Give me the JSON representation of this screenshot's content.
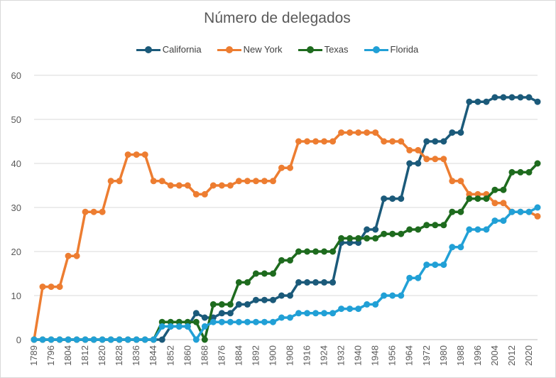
{
  "chart_data": {
    "type": "line",
    "title": "Número de delegados",
    "xlabel": "",
    "ylabel": "",
    "ylim": [
      0,
      60
    ],
    "yticks": [
      0,
      10,
      20,
      30,
      40,
      50,
      60
    ],
    "grid": true,
    "legend_position": "top",
    "x": [
      1789,
      1792,
      1796,
      1800,
      1804,
      1808,
      1812,
      1816,
      1820,
      1824,
      1828,
      1832,
      1836,
      1840,
      1844,
      1848,
      1852,
      1856,
      1860,
      1864,
      1868,
      1872,
      1876,
      1880,
      1884,
      1888,
      1892,
      1896,
      1900,
      1904,
      1908,
      1912,
      1916,
      1920,
      1924,
      1928,
      1932,
      1936,
      1940,
      1944,
      1948,
      1952,
      1956,
      1960,
      1964,
      1968,
      1972,
      1976,
      1980,
      1984,
      1988,
      1992,
      1996,
      2000,
      2004,
      2008,
      2012,
      2016,
      2020,
      2024
    ],
    "xtick_labels": [
      "1789",
      "1796",
      "1804",
      "1812",
      "1820",
      "1828",
      "1836",
      "1844",
      "1852",
      "1860",
      "1868",
      "1876",
      "1884",
      "1892",
      "1900",
      "1908",
      "1916",
      "1924",
      "1932",
      "1940",
      "1948",
      "1956",
      "1964",
      "1972",
      "1980",
      "1988",
      "1996",
      "2004",
      "2012",
      "2020"
    ],
    "series": [
      {
        "name": "California",
        "color": "#1b5a7a",
        "values": [
          0,
          0,
          0,
          0,
          0,
          0,
          0,
          0,
          0,
          0,
          0,
          0,
          0,
          0,
          0,
          0,
          3,
          3,
          3,
          6,
          5,
          5,
          6,
          6,
          8,
          8,
          9,
          9,
          9,
          10,
          10,
          13,
          13,
          13,
          13,
          13,
          22,
          22,
          22,
          25,
          25,
          32,
          32,
          32,
          40,
          40,
          45,
          45,
          45,
          47,
          47,
          54,
          54,
          54,
          55,
          55,
          55,
          55,
          55,
          54
        ]
      },
      {
        "name": "New York",
        "color": "#ed7d31",
        "values": [
          0,
          12,
          12,
          12,
          19,
          19,
          29,
          29,
          29,
          36,
          36,
          42,
          42,
          42,
          36,
          36,
          35,
          35,
          35,
          33,
          33,
          35,
          35,
          35,
          36,
          36,
          36,
          36,
          36,
          39,
          39,
          45,
          45,
          45,
          45,
          45,
          47,
          47,
          47,
          47,
          47,
          45,
          45,
          45,
          43,
          43,
          41,
          41,
          41,
          36,
          36,
          33,
          33,
          33,
          31,
          31,
          29,
          29,
          29,
          28
        ]
      },
      {
        "name": "Texas",
        "color": "#1e6b1e",
        "values": [
          0,
          0,
          0,
          0,
          0,
          0,
          0,
          0,
          0,
          0,
          0,
          0,
          0,
          0,
          0,
          4,
          4,
          4,
          4,
          4,
          0,
          8,
          8,
          8,
          13,
          13,
          15,
          15,
          15,
          18,
          18,
          20,
          20,
          20,
          20,
          20,
          23,
          23,
          23,
          23,
          23,
          24,
          24,
          24,
          25,
          25,
          26,
          26,
          26,
          29,
          29,
          32,
          32,
          32,
          34,
          34,
          38,
          38,
          38,
          40
        ]
      },
      {
        "name": "Florida",
        "color": "#21a0d6",
        "values": [
          0,
          0,
          0,
          0,
          0,
          0,
          0,
          0,
          0,
          0,
          0,
          0,
          0,
          0,
          0,
          3,
          3,
          3,
          3,
          0,
          3,
          4,
          4,
          4,
          4,
          4,
          4,
          4,
          4,
          5,
          5,
          6,
          6,
          6,
          6,
          6,
          7,
          7,
          7,
          8,
          8,
          10,
          10,
          10,
          14,
          14,
          17,
          17,
          17,
          21,
          21,
          25,
          25,
          25,
          27,
          27,
          29,
          29,
          29,
          30
        ]
      }
    ]
  }
}
